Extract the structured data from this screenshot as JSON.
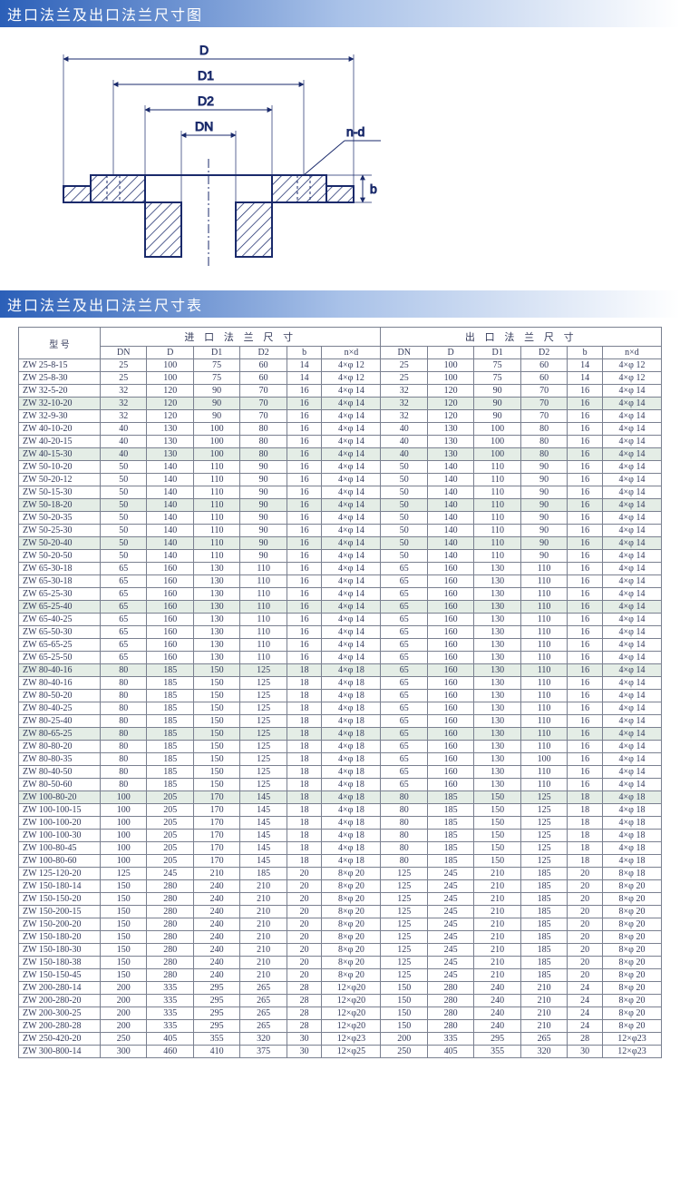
{
  "section1_title": "进口法兰及出口法兰尺寸图",
  "section2_title": "进口法兰及出口法兰尺寸表",
  "diagram_labels": {
    "D": "D",
    "D1": "D1",
    "D2": "D2",
    "DN": "DN",
    "nd": "n-d",
    "b": "b"
  },
  "table_headers": {
    "model": "型  号",
    "inlet": "进 口 法 兰 尺 寸",
    "outlet": "出 口 法 兰 尺 寸",
    "cols": [
      "DN",
      "D",
      "D1",
      "D2",
      "b",
      "n×d"
    ]
  },
  "shaded_rows": [
    3,
    7,
    11,
    14,
    19,
    24,
    29,
    34
  ],
  "rows": [
    {
      "m": "ZW 25-8-15",
      "i": [
        "25",
        "100",
        "75",
        "60",
        "14",
        "4×φ 12"
      ],
      "o": [
        "25",
        "100",
        "75",
        "60",
        "14",
        "4×φ 12"
      ]
    },
    {
      "m": "ZW 25-8-30",
      "i": [
        "25",
        "100",
        "75",
        "60",
        "14",
        "4×φ 12"
      ],
      "o": [
        "25",
        "100",
        "75",
        "60",
        "14",
        "4×φ 12"
      ]
    },
    {
      "m": "ZW 32-5-20",
      "i": [
        "32",
        "120",
        "90",
        "70",
        "16",
        "4×φ 14"
      ],
      "o": [
        "32",
        "120",
        "90",
        "70",
        "16",
        "4×φ 14"
      ]
    },
    {
      "m": "ZW 32-10-20",
      "i": [
        "32",
        "120",
        "90",
        "70",
        "16",
        "4×φ 14"
      ],
      "o": [
        "32",
        "120",
        "90",
        "70",
        "16",
        "4×φ 14"
      ]
    },
    {
      "m": "ZW 32-9-30",
      "i": [
        "32",
        "120",
        "90",
        "70",
        "16",
        "4×φ 14"
      ],
      "o": [
        "32",
        "120",
        "90",
        "70",
        "16",
        "4×φ 14"
      ]
    },
    {
      "m": "ZW 40-10-20",
      "i": [
        "40",
        "130",
        "100",
        "80",
        "16",
        "4×φ 14"
      ],
      "o": [
        "40",
        "130",
        "100",
        "80",
        "16",
        "4×φ 14"
      ]
    },
    {
      "m": "ZW 40-20-15",
      "i": [
        "40",
        "130",
        "100",
        "80",
        "16",
        "4×φ 14"
      ],
      "o": [
        "40",
        "130",
        "100",
        "80",
        "16",
        "4×φ 14"
      ]
    },
    {
      "m": "ZW 40-15-30",
      "i": [
        "40",
        "130",
        "100",
        "80",
        "16",
        "4×φ 14"
      ],
      "o": [
        "40",
        "130",
        "100",
        "80",
        "16",
        "4×φ 14"
      ]
    },
    {
      "m": "ZW 50-10-20",
      "i": [
        "50",
        "140",
        "110",
        "90",
        "16",
        "4×φ 14"
      ],
      "o": [
        "50",
        "140",
        "110",
        "90",
        "16",
        "4×φ 14"
      ]
    },
    {
      "m": "ZW 50-20-12",
      "i": [
        "50",
        "140",
        "110",
        "90",
        "16",
        "4×φ 14"
      ],
      "o": [
        "50",
        "140",
        "110",
        "90",
        "16",
        "4×φ 14"
      ]
    },
    {
      "m": "ZW 50-15-30",
      "i": [
        "50",
        "140",
        "110",
        "90",
        "16",
        "4×φ 14"
      ],
      "o": [
        "50",
        "140",
        "110",
        "90",
        "16",
        "4×φ 14"
      ]
    },
    {
      "m": "ZW 50-18-20",
      "i": [
        "50",
        "140",
        "110",
        "90",
        "16",
        "4×φ 14"
      ],
      "o": [
        "50",
        "140",
        "110",
        "90",
        "16",
        "4×φ 14"
      ]
    },
    {
      "m": "ZW 50-20-35",
      "i": [
        "50",
        "140",
        "110",
        "90",
        "16",
        "4×φ 14"
      ],
      "o": [
        "50",
        "140",
        "110",
        "90",
        "16",
        "4×φ 14"
      ]
    },
    {
      "m": "ZW 50-25-30",
      "i": [
        "50",
        "140",
        "110",
        "90",
        "16",
        "4×φ 14"
      ],
      "o": [
        "50",
        "140",
        "110",
        "90",
        "16",
        "4×φ 14"
      ]
    },
    {
      "m": "ZW 50-20-40",
      "i": [
        "50",
        "140",
        "110",
        "90",
        "16",
        "4×φ 14"
      ],
      "o": [
        "50",
        "140",
        "110",
        "90",
        "16",
        "4×φ 14"
      ]
    },
    {
      "m": "ZW 50-20-50",
      "i": [
        "50",
        "140",
        "110",
        "90",
        "16",
        "4×φ 14"
      ],
      "o": [
        "50",
        "140",
        "110",
        "90",
        "16",
        "4×φ 14"
      ]
    },
    {
      "m": "ZW 65-30-18",
      "i": [
        "65",
        "160",
        "130",
        "110",
        "16",
        "4×φ 14"
      ],
      "o": [
        "65",
        "160",
        "130",
        "110",
        "16",
        "4×φ 14"
      ]
    },
    {
      "m": "ZW 65-30-18",
      "i": [
        "65",
        "160",
        "130",
        "110",
        "16",
        "4×φ 14"
      ],
      "o": [
        "65",
        "160",
        "130",
        "110",
        "16",
        "4×φ 14"
      ]
    },
    {
      "m": "ZW 65-25-30",
      "i": [
        "65",
        "160",
        "130",
        "110",
        "16",
        "4×φ 14"
      ],
      "o": [
        "65",
        "160",
        "130",
        "110",
        "16",
        "4×φ 14"
      ]
    },
    {
      "m": "ZW 65-25-40",
      "i": [
        "65",
        "160",
        "130",
        "110",
        "16",
        "4×φ 14"
      ],
      "o": [
        "65",
        "160",
        "130",
        "110",
        "16",
        "4×φ 14"
      ]
    },
    {
      "m": "ZW 65-40-25",
      "i": [
        "65",
        "160",
        "130",
        "110",
        "16",
        "4×φ 14"
      ],
      "o": [
        "65",
        "160",
        "130",
        "110",
        "16",
        "4×φ 14"
      ]
    },
    {
      "m": "ZW 65-50-30",
      "i": [
        "65",
        "160",
        "130",
        "110",
        "16",
        "4×φ 14"
      ],
      "o": [
        "65",
        "160",
        "130",
        "110",
        "16",
        "4×φ 14"
      ]
    },
    {
      "m": "ZW 65-65-25",
      "i": [
        "65",
        "160",
        "130",
        "110",
        "16",
        "4×φ 14"
      ],
      "o": [
        "65",
        "160",
        "130",
        "110",
        "16",
        "4×φ 14"
      ]
    },
    {
      "m": "ZW 65-25-50",
      "i": [
        "65",
        "160",
        "130",
        "110",
        "16",
        "4×φ 14"
      ],
      "o": [
        "65",
        "160",
        "130",
        "110",
        "16",
        "4×φ 14"
      ]
    },
    {
      "m": "ZW 80-40-16",
      "i": [
        "80",
        "185",
        "150",
        "125",
        "18",
        "4×φ 18"
      ],
      "o": [
        "65",
        "160",
        "130",
        "110",
        "16",
        "4×φ 14"
      ]
    },
    {
      "m": "ZW 80-40-16",
      "i": [
        "80",
        "185",
        "150",
        "125",
        "18",
        "4×φ 18"
      ],
      "o": [
        "65",
        "160",
        "130",
        "110",
        "16",
        "4×φ 14"
      ]
    },
    {
      "m": "ZW 80-50-20",
      "i": [
        "80",
        "185",
        "150",
        "125",
        "18",
        "4×φ 18"
      ],
      "o": [
        "65",
        "160",
        "130",
        "110",
        "16",
        "4×φ 14"
      ]
    },
    {
      "m": "ZW 80-40-25",
      "i": [
        "80",
        "185",
        "150",
        "125",
        "18",
        "4×φ 18"
      ],
      "o": [
        "65",
        "160",
        "130",
        "110",
        "16",
        "4×φ 14"
      ]
    },
    {
      "m": "ZW 80-25-40",
      "i": [
        "80",
        "185",
        "150",
        "125",
        "18",
        "4×φ 18"
      ],
      "o": [
        "65",
        "160",
        "130",
        "110",
        "16",
        "4×φ 14"
      ]
    },
    {
      "m": "ZW 80-65-25",
      "i": [
        "80",
        "185",
        "150",
        "125",
        "18",
        "4×φ 18"
      ],
      "o": [
        "65",
        "160",
        "130",
        "110",
        "16",
        "4×φ 14"
      ]
    },
    {
      "m": "ZW 80-80-20",
      "i": [
        "80",
        "185",
        "150",
        "125",
        "18",
        "4×φ 18"
      ],
      "o": [
        "65",
        "160",
        "130",
        "110",
        "16",
        "4×φ 14"
      ]
    },
    {
      "m": "ZW 80-80-35",
      "i": [
        "80",
        "185",
        "150",
        "125",
        "18",
        "4×φ 18"
      ],
      "o": [
        "65",
        "160",
        "130",
        "100",
        "16",
        "4×φ 14"
      ]
    },
    {
      "m": "ZW 80-40-50",
      "i": [
        "80",
        "185",
        "150",
        "125",
        "18",
        "4×φ 18"
      ],
      "o": [
        "65",
        "160",
        "130",
        "110",
        "16",
        "4×φ 14"
      ]
    },
    {
      "m": "ZW 80-50-60",
      "i": [
        "80",
        "185",
        "150",
        "125",
        "18",
        "4×φ 18"
      ],
      "o": [
        "65",
        "160",
        "130",
        "110",
        "16",
        "4×φ 14"
      ]
    },
    {
      "m": "ZW 100-80-20",
      "i": [
        "100",
        "205",
        "170",
        "145",
        "18",
        "4×φ 18"
      ],
      "o": [
        "80",
        "185",
        "150",
        "125",
        "18",
        "4×φ 18"
      ]
    },
    {
      "m": "ZW 100-100-15",
      "i": [
        "100",
        "205",
        "170",
        "145",
        "18",
        "4×φ 18"
      ],
      "o": [
        "80",
        "185",
        "150",
        "125",
        "18",
        "4×φ 18"
      ]
    },
    {
      "m": "ZW 100-100-20",
      "i": [
        "100",
        "205",
        "170",
        "145",
        "18",
        "4×φ 18"
      ],
      "o": [
        "80",
        "185",
        "150",
        "125",
        "18",
        "4×φ 18"
      ]
    },
    {
      "m": "ZW 100-100-30",
      "i": [
        "100",
        "205",
        "170",
        "145",
        "18",
        "4×φ 18"
      ],
      "o": [
        "80",
        "185",
        "150",
        "125",
        "18",
        "4×φ 18"
      ]
    },
    {
      "m": "ZW 100-80-45",
      "i": [
        "100",
        "205",
        "170",
        "145",
        "18",
        "4×φ 18"
      ],
      "o": [
        "80",
        "185",
        "150",
        "125",
        "18",
        "4×φ 18"
      ]
    },
    {
      "m": "ZW 100-80-60",
      "i": [
        "100",
        "205",
        "170",
        "145",
        "18",
        "4×φ 18"
      ],
      "o": [
        "80",
        "185",
        "150",
        "125",
        "18",
        "4×φ 18"
      ]
    },
    {
      "m": "ZW 125-120-20",
      "i": [
        "125",
        "245",
        "210",
        "185",
        "20",
        "8×φ 20"
      ],
      "o": [
        "125",
        "245",
        "210",
        "185",
        "20",
        "8×φ 18"
      ]
    },
    {
      "m": "ZW 150-180-14",
      "i": [
        "150",
        "280",
        "240",
        "210",
        "20",
        "8×φ 20"
      ],
      "o": [
        "125",
        "245",
        "210",
        "185",
        "20",
        "8×φ 20"
      ]
    },
    {
      "m": "ZW 150-150-20",
      "i": [
        "150",
        "280",
        "240",
        "210",
        "20",
        "8×φ 20"
      ],
      "o": [
        "125",
        "245",
        "210",
        "185",
        "20",
        "8×φ 20"
      ]
    },
    {
      "m": "ZW 150-200-15",
      "i": [
        "150",
        "280",
        "240",
        "210",
        "20",
        "8×φ 20"
      ],
      "o": [
        "125",
        "245",
        "210",
        "185",
        "20",
        "8×φ 20"
      ]
    },
    {
      "m": "ZW 150-200-20",
      "i": [
        "150",
        "280",
        "240",
        "210",
        "20",
        "8×φ 20"
      ],
      "o": [
        "125",
        "245",
        "210",
        "185",
        "20",
        "8×φ 20"
      ]
    },
    {
      "m": "ZW 150-180-20",
      "i": [
        "150",
        "280",
        "240",
        "210",
        "20",
        "8×φ 20"
      ],
      "o": [
        "125",
        "245",
        "210",
        "185",
        "20",
        "8×φ 20"
      ]
    },
    {
      "m": "ZW 150-180-30",
      "i": [
        "150",
        "280",
        "240",
        "210",
        "20",
        "8×φ 20"
      ],
      "o": [
        "125",
        "245",
        "210",
        "185",
        "20",
        "8×φ 20"
      ]
    },
    {
      "m": "ZW 150-180-38",
      "i": [
        "150",
        "280",
        "240",
        "210",
        "20",
        "8×φ 20"
      ],
      "o": [
        "125",
        "245",
        "210",
        "185",
        "20",
        "8×φ 20"
      ]
    },
    {
      "m": "ZW 150-150-45",
      "i": [
        "150",
        "280",
        "240",
        "210",
        "20",
        "8×φ 20"
      ],
      "o": [
        "125",
        "245",
        "210",
        "185",
        "20",
        "8×φ 20"
      ]
    },
    {
      "m": "ZW 200-280-14",
      "i": [
        "200",
        "335",
        "295",
        "265",
        "28",
        "12×φ20"
      ],
      "o": [
        "150",
        "280",
        "240",
        "210",
        "24",
        "8×φ 20"
      ]
    },
    {
      "m": "ZW 200-280-20",
      "i": [
        "200",
        "335",
        "295",
        "265",
        "28",
        "12×φ20"
      ],
      "o": [
        "150",
        "280",
        "240",
        "210",
        "24",
        "8×φ 20"
      ]
    },
    {
      "m": "ZW 200-300-25",
      "i": [
        "200",
        "335",
        "295",
        "265",
        "28",
        "12×φ20"
      ],
      "o": [
        "150",
        "280",
        "240",
        "210",
        "24",
        "8×φ 20"
      ]
    },
    {
      "m": "ZW 200-280-28",
      "i": [
        "200",
        "335",
        "295",
        "265",
        "28",
        "12×φ20"
      ],
      "o": [
        "150",
        "280",
        "240",
        "210",
        "24",
        "8×φ 20"
      ]
    },
    {
      "m": "ZW 250-420-20",
      "i": [
        "250",
        "405",
        "355",
        "320",
        "30",
        "12×φ23"
      ],
      "o": [
        "200",
        "335",
        "295",
        "265",
        "28",
        "12×φ23"
      ]
    },
    {
      "m": "ZW 300-800-14",
      "i": [
        "300",
        "460",
        "410",
        "375",
        "30",
        "12×φ25"
      ],
      "o": [
        "250",
        "405",
        "355",
        "320",
        "30",
        "12×φ23"
      ]
    }
  ]
}
